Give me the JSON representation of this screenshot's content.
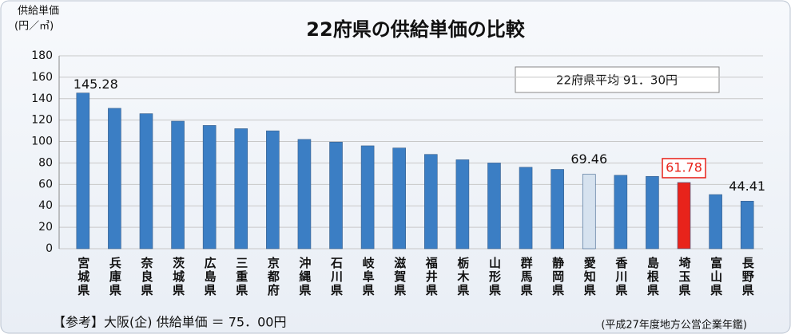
{
  "chart_data": {
    "type": "bar",
    "title": "22府県の供給単価の比較",
    "y_label": "供給単価",
    "y_unit": "(円／㎥)",
    "annotation": "22府県平均 91．30円",
    "note": "【参考】大阪(企) 供給単価 ＝ 75．00円",
    "source": "(平成27年度地方公営企業年鑑)",
    "categories": [
      "宮城県",
      "兵庫県",
      "奈良県",
      "茨城県",
      "広島県",
      "三重県",
      "京都府",
      "沖縄県",
      "石川県",
      "岐阜県",
      "滋賀県",
      "福井県",
      "栃木県",
      "山形県",
      "群馬県",
      "静岡県",
      "愛知県",
      "香川県",
      "島根県",
      "埼玉県",
      "富山県",
      "長野県"
    ],
    "values": [
      145.28,
      131,
      126,
      119,
      115,
      112,
      110,
      102,
      99.5,
      96,
      94,
      88,
      83,
      80,
      76,
      74,
      69.46,
      68.5,
      67.5,
      61.78,
      50.5,
      44.41
    ],
    "value_labels": [
      "145.28",
      null,
      null,
      null,
      null,
      null,
      null,
      null,
      null,
      null,
      null,
      null,
      null,
      null,
      null,
      null,
      "69.46",
      null,
      null,
      "61.78",
      null,
      "44.41"
    ],
    "colors": [
      "#3b7ec4",
      "#3b7ec4",
      "#3b7ec4",
      "#3b7ec4",
      "#3b7ec4",
      "#3b7ec4",
      "#3b7ec4",
      "#3b7ec4",
      "#3b7ec4",
      "#3b7ec4",
      "#3b7ec4",
      "#3b7ec4",
      "#3b7ec4",
      "#3b7ec4",
      "#3b7ec4",
      "#3b7ec4",
      "#d6e2ef",
      "#3b7ec4",
      "#3b7ec4",
      "#e8231b",
      "#3b7ec4",
      "#3b7ec4"
    ],
    "highlight_color": "#e8231b",
    "ylim": [
      0,
      180
    ],
    "yticks": [
      0,
      20,
      40,
      60,
      80,
      100,
      120,
      140,
      160,
      180
    ],
    "grid": true
  }
}
